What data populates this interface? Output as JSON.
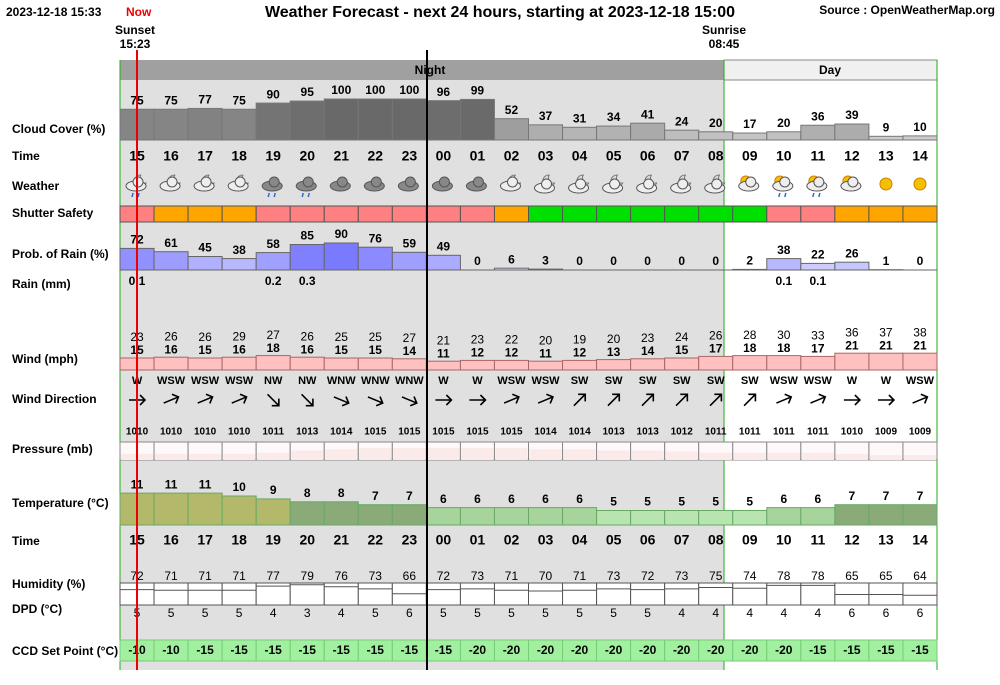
{
  "header": {
    "timestamp": "2023-12-18 15:33",
    "now": "Now",
    "title": "Weather Forecast - next 24 hours, starting at 2023-12-18 15:00",
    "source": "Source : OpenWeatherMap.org"
  },
  "sunset": {
    "label": "Sunset",
    "time": "15:23"
  },
  "sunrise": {
    "label": "Sunrise",
    "time": "08:45"
  },
  "periods": {
    "night": "Night",
    "day": "Day"
  },
  "row_labels": {
    "cloud_cover": "Cloud Cover (%)",
    "time": "Time",
    "weather": "Weather",
    "shutter_safety": "Shutter Safety",
    "rain_probability": "Prob. of Rain (%)",
    "rain": "Rain (mm)",
    "wind": "Wind (mph)",
    "wind_direction": "Wind Direction",
    "pressure": "Pressure (mb)",
    "temperature": "Temperature (°C)",
    "humidity": "Humidity (%)",
    "dpd": "DPD (°C)",
    "ccd_set_point": "CCD Set Point (°C)"
  },
  "hours": [
    "15",
    "16",
    "17",
    "18",
    "19",
    "20",
    "21",
    "22",
    "23",
    "00",
    "01",
    "02",
    "03",
    "04",
    "05",
    "06",
    "07",
    "08",
    "09",
    "10",
    "11",
    "12",
    "13",
    "14"
  ],
  "cloud_cover": [
    75,
    75,
    77,
    75,
    90,
    95,
    100,
    100,
    100,
    96,
    99,
    52,
    37,
    31,
    34,
    41,
    24,
    20,
    17,
    20,
    36,
    39,
    9,
    10
  ],
  "shutter_safety_colors": [
    "#ff8080",
    "#ffa500",
    "#ffa500",
    "#ffa500",
    "#ff8080",
    "#ff8080",
    "#ff8080",
    "#ff8080",
    "#ff8080",
    "#ff8080",
    "#ff8080",
    "#ffa500",
    "#00e000",
    "#00e000",
    "#00e000",
    "#00e000",
    "#00e000",
    "#00e000",
    "#00e000",
    "#ff8080",
    "#ff8080",
    "#ffa500",
    "#ffa500",
    "#ffa500"
  ],
  "rain_probability": [
    72,
    61,
    45,
    38,
    58,
    85,
    90,
    76,
    59,
    49,
    0,
    6,
    3,
    0,
    0,
    0,
    0,
    0,
    2,
    38,
    22,
    26,
    1,
    0
  ],
  "rain": [
    0.1,
    0,
    0,
    0,
    0.2,
    0.3,
    0,
    0,
    0,
    0,
    0,
    0,
    0,
    0,
    0,
    0,
    0,
    0,
    0,
    0.1,
    0.1,
    0,
    0,
    0
  ],
  "wind_gust": [
    23,
    26,
    26,
    29,
    27,
    26,
    25,
    25,
    27,
    21,
    23,
    22,
    20,
    19,
    20,
    23,
    24,
    26,
    28,
    30,
    33,
    36,
    37,
    38
  ],
  "wind_speed": [
    15,
    16,
    15,
    16,
    18,
    16,
    15,
    15,
    14,
    11,
    12,
    12,
    11,
    12,
    13,
    14,
    15,
    17,
    18,
    18,
    17,
    21,
    21,
    21
  ],
  "wind_direction": [
    "W",
    "WSW",
    "WSW",
    "WSW",
    "NW",
    "NW",
    "WNW",
    "WNW",
    "WNW",
    "W",
    "W",
    "WSW",
    "WSW",
    "SW",
    "SW",
    "SW",
    "SW",
    "SW",
    "SW",
    "WSW",
    "WSW",
    "W",
    "W",
    "WSW"
  ],
  "pressure": [
    1010,
    1010,
    1010,
    1010,
    1011,
    1013,
    1014,
    1015,
    1015,
    1015,
    1015,
    1015,
    1014,
    1014,
    1013,
    1013,
    1012,
    1011,
    1011,
    1011,
    1011,
    1010,
    1009,
    1009
  ],
  "temperature": [
    11,
    11,
    11,
    10,
    9,
    8,
    8,
    7,
    7,
    6,
    6,
    6,
    6,
    6,
    5,
    5,
    5,
    5,
    5,
    6,
    6,
    7,
    7,
    7
  ],
  "humidity": [
    72,
    71,
    71,
    71,
    77,
    79,
    76,
    73,
    66,
    72,
    73,
    71,
    70,
    71,
    73,
    72,
    73,
    75,
    74,
    78,
    78,
    65,
    65,
    64
  ],
  "dpd": [
    5,
    5,
    5,
    5,
    4,
    3,
    4,
    5,
    6,
    5,
    5,
    5,
    5,
    5,
    5,
    5,
    4,
    4,
    4,
    4,
    4,
    6,
    6,
    6
  ],
  "ccd_set_point": [
    -10,
    -10,
    -15,
    -15,
    -15,
    -15,
    -15,
    -15,
    -15,
    -15,
    -20,
    -20,
    -20,
    -20,
    -20,
    -20,
    -20,
    -20,
    -20,
    -20,
    -15,
    -15,
    -15,
    -15
  ]
}
